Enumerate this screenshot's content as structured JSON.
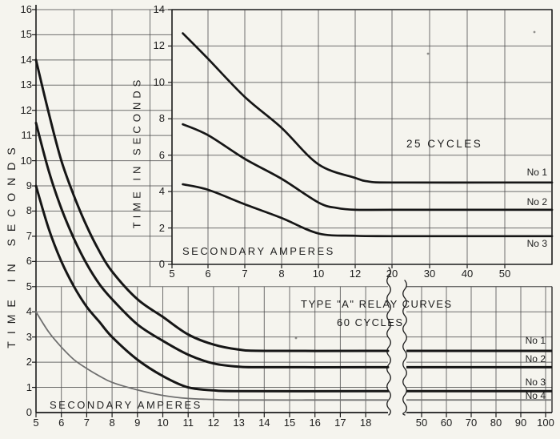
{
  "page": {
    "background": "#f5f4ee",
    "ink": "#1b1b1b",
    "grid_color": "#4d4d4d",
    "faint_curve_color": "#6f6f6f"
  },
  "chart_data": [
    {
      "id": "main-60-cycles",
      "type": "line",
      "title": "TYPE \"A\" RELAY CURVES",
      "subtitle": "60 CYCLES",
      "xlabel": "SECONDARY AMPERES",
      "ylabel": "TIME IN SECONDS",
      "x_axis": {
        "left_ticks": [
          5,
          6,
          7,
          8,
          9,
          10,
          11,
          12,
          13,
          14,
          15,
          16,
          17,
          18
        ],
        "axis_break": true,
        "right_ticks": [
          50,
          60,
          70,
          80,
          90,
          100
        ]
      },
      "y_axis": {
        "min": 0,
        "max": 16,
        "ticks": [
          0,
          1,
          2,
          3,
          4,
          5,
          6,
          7,
          8,
          9,
          10,
          11,
          12,
          13,
          14,
          15,
          16
        ]
      },
      "grid": true,
      "legend_position": "right-edge",
      "series": [
        {
          "name": "No 1",
          "flat_value": 2.45,
          "points": [
            [
              5,
              14.0
            ],
            [
              5.5,
              11.9
            ],
            [
              6,
              10.0
            ],
            [
              6.5,
              8.6
            ],
            [
              7,
              7.4
            ],
            [
              7.5,
              6.4
            ],
            [
              8,
              5.6
            ],
            [
              9,
              4.5
            ],
            [
              10,
              3.8
            ],
            [
              11,
              3.1
            ],
            [
              12,
              2.7
            ],
            [
              13,
              2.5
            ],
            [
              14,
              2.45
            ],
            [
              18,
              2.45
            ]
          ]
        },
        {
          "name": "No 2",
          "flat_value": 1.8,
          "points": [
            [
              5,
              11.5
            ],
            [
              5.5,
              9.6
            ],
            [
              6,
              8.1
            ],
            [
              6.5,
              6.9
            ],
            [
              7,
              5.9
            ],
            [
              7.5,
              5.1
            ],
            [
              8,
              4.5
            ],
            [
              9,
              3.5
            ],
            [
              10,
              2.85
            ],
            [
              11,
              2.3
            ],
            [
              12,
              1.95
            ],
            [
              13,
              1.82
            ],
            [
              14,
              1.8
            ],
            [
              18,
              1.8
            ]
          ]
        },
        {
          "name": "No 3",
          "flat_value": 0.85,
          "points": [
            [
              5,
              9.0
            ],
            [
              5.5,
              7.3
            ],
            [
              6,
              6.0
            ],
            [
              6.5,
              5.0
            ],
            [
              7,
              4.2
            ],
            [
              7.5,
              3.6
            ],
            [
              8,
              3.0
            ],
            [
              9,
              2.1
            ],
            [
              10,
              1.45
            ],
            [
              11,
              1.0
            ],
            [
              12,
              0.88
            ],
            [
              13,
              0.85
            ],
            [
              18,
              0.85
            ]
          ]
        },
        {
          "name": "No 4",
          "flat_value": 0.5,
          "faint": true,
          "points": [
            [
              5,
              4.0
            ],
            [
              5.5,
              3.2
            ],
            [
              6,
              2.6
            ],
            [
              6.5,
              2.1
            ],
            [
              7,
              1.75
            ],
            [
              7.5,
              1.45
            ],
            [
              8,
              1.2
            ],
            [
              9,
              0.9
            ],
            [
              10,
              0.68
            ],
            [
              11,
              0.56
            ],
            [
              12,
              0.52
            ],
            [
              13,
              0.5
            ],
            [
              18,
              0.5
            ]
          ]
        }
      ]
    },
    {
      "id": "inset-25-cycles",
      "type": "line",
      "title": "25 CYCLES",
      "xlabel": "SECONDARY AMPERES",
      "ylabel": "TIME IN SECONDS",
      "x_axis": {
        "ticks": [
          5,
          6,
          7,
          8,
          10,
          12,
          20,
          30,
          40,
          50
        ],
        "scale": "irregular"
      },
      "y_axis": {
        "min": 0,
        "max": 14,
        "ticks": [
          0,
          2,
          4,
          6,
          8,
          10,
          12,
          14
        ]
      },
      "grid": true,
      "legend_position": "right-edge",
      "series": [
        {
          "name": "No 1",
          "flat_value": 4.5,
          "points": [
            [
              5.3,
              12.7
            ],
            [
              6,
              11.3
            ],
            [
              7,
              9.2
            ],
            [
              8,
              7.5
            ],
            [
              10,
              5.5
            ],
            [
              12,
              4.75
            ],
            [
              15,
              4.55
            ],
            [
              20,
              4.5
            ],
            [
              50,
              4.5
            ]
          ]
        },
        {
          "name": "No 2",
          "flat_value": 3.0,
          "points": [
            [
              5.3,
              7.7
            ],
            [
              6,
              7.1
            ],
            [
              7,
              5.8
            ],
            [
              8,
              4.7
            ],
            [
              10,
              3.4
            ],
            [
              11,
              3.1
            ],
            [
              12,
              3.0
            ],
            [
              20,
              3.0
            ],
            [
              50,
              3.0
            ]
          ]
        },
        {
          "name": "No 3",
          "flat_value": 1.55,
          "points": [
            [
              5.3,
              4.4
            ],
            [
              6,
              4.1
            ],
            [
              7,
              3.3
            ],
            [
              8,
              2.55
            ],
            [
              10,
              1.7
            ],
            [
              12,
              1.57
            ],
            [
              20,
              1.55
            ],
            [
              50,
              1.55
            ]
          ]
        }
      ]
    }
  ]
}
